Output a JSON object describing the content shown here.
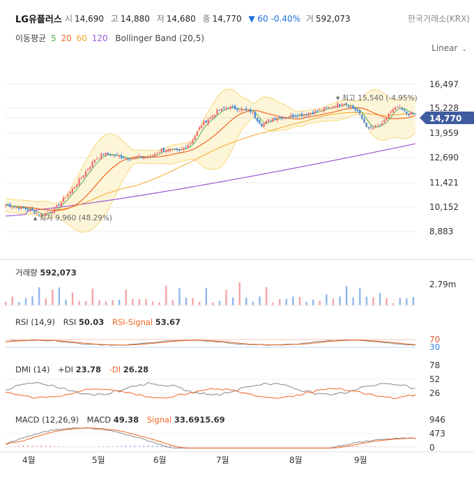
{
  "header": {
    "stock_name": "LG유플러스",
    "open_label": "시",
    "open": "14,690",
    "high_label": "고",
    "high": "14,880",
    "low_label": "저",
    "low": "14,680",
    "close_label": "종",
    "close": "14,770",
    "change": "▼ 60",
    "change_pct": "-0.40%",
    "volume_label": "거",
    "volume": "592,073",
    "exchange": "한국거래소(KRX)"
  },
  "legend": {
    "ma_label": "이동평균",
    "ma5": "5",
    "ma20": "20",
    "ma60": "60",
    "ma120": "120",
    "bb_label": "Bollinger Band (20,5)"
  },
  "scale_toggle": "Linear",
  "colors": {
    "up": "#f0686e",
    "down": "#3e82e0",
    "ma5": "#4caf50",
    "ma20": "#f26522",
    "ma60": "#f5a623",
    "ma120": "#9b59d6",
    "bb": "#f7d87a",
    "bb_fill": "#fdf6dc",
    "accent": "#3f5c9f"
  },
  "chart_data": [
    {
      "type": "candlestick",
      "title": "",
      "y_ticks": [
        16497,
        15228,
        13959,
        12690,
        11421,
        10152,
        8883
      ],
      "y_tick_labels": [
        "16,497",
        "15,228",
        "13,959",
        "12,690",
        "11,421",
        "10,152",
        "8,883"
      ],
      "ylim": [
        8250,
        17400
      ],
      "x_month_labels": [
        "4월",
        "5월",
        "6월",
        "7월",
        "8월",
        "9월"
      ],
      "current_price": 14770,
      "current_price_label": "14,770",
      "max_annotation": "최고 15,540 (-4.95%)",
      "min_annotation": "최저 9,960 (48.29%)",
      "close_keypoints": [
        [
          0,
          10700
        ],
        [
          10,
          10500
        ],
        [
          16,
          10250
        ],
        [
          22,
          10500
        ],
        [
          30,
          11400
        ],
        [
          36,
          12200
        ],
        [
          40,
          12750
        ],
        [
          44,
          13000
        ],
        [
          55,
          12800
        ],
        [
          65,
          12850
        ],
        [
          70,
          13200
        ],
        [
          78,
          13100
        ],
        [
          83,
          13500
        ],
        [
          88,
          14300
        ],
        [
          95,
          14900
        ],
        [
          100,
          15100
        ],
        [
          110,
          14900
        ],
        [
          115,
          14300
        ],
        [
          120,
          14600
        ],
        [
          128,
          14700
        ],
        [
          140,
          14900
        ],
        [
          152,
          15300
        ],
        [
          158,
          14900
        ],
        [
          163,
          14100
        ],
        [
          169,
          14300
        ],
        [
          172,
          14800
        ],
        [
          176,
          15100
        ],
        [
          180,
          14800
        ],
        [
          184,
          14770
        ]
      ]
    },
    {
      "type": "bar",
      "title": "거래량",
      "title_value": "592,073",
      "y_tick_label": "2.79m"
    },
    {
      "type": "line",
      "title": "RSI (14,9)",
      "series": [
        {
          "name": "RSI",
          "last": "50.03"
        },
        {
          "name": "RSI-Signal",
          "last": "53.67"
        }
      ],
      "y_ticks": [
        70,
        30
      ]
    },
    {
      "type": "line",
      "title": "DMI (14)",
      "series": [
        {
          "name": "+DI",
          "last": "23.78"
        },
        {
          "name": "-DI",
          "last": "26.28"
        }
      ],
      "y_ticks": [
        78,
        52,
        26
      ]
    },
    {
      "type": "line",
      "title": "MACD (12,26,9)",
      "series": [
        {
          "name": "MACD",
          "last": "49.38"
        },
        {
          "name": "Signal",
          "last": "33.6915.69"
        }
      ],
      "y_ticks": [
        946,
        473,
        0
      ]
    }
  ]
}
